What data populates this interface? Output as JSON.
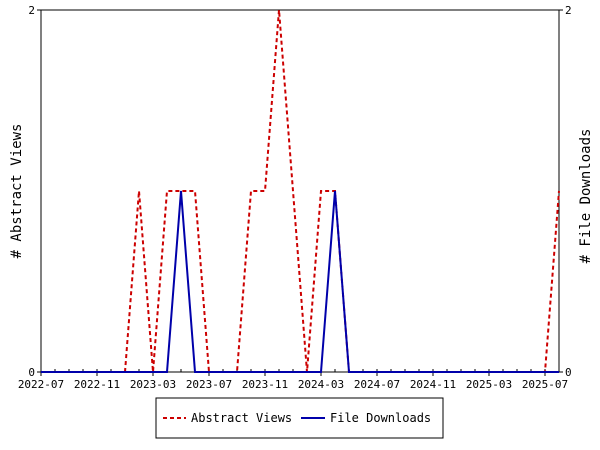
{
  "chart_data": {
    "type": "line",
    "title": "",
    "xlabel": "",
    "ylabel_left": "# Abstract Views",
    "ylabel_right": "# File Downloads",
    "ylim_left": [
      0,
      2
    ],
    "ylim_right": [
      0,
      2
    ],
    "y_ticks_left": [
      "0",
      "2"
    ],
    "y_ticks_right": [
      "0",
      "2"
    ],
    "x_range": [
      "2022-07",
      "2025-08"
    ],
    "x_tick_labels": [
      "2022-07",
      "2022-11",
      "2023-03",
      "2023-07",
      "2023-11",
      "2024-03",
      "2024-07",
      "2024-11",
      "2025-03",
      "2025-07"
    ],
    "grid": false,
    "legend_position": "bottom-center",
    "colors": {
      "abstract_views": "#cc0000",
      "file_downloads": "#0000aa"
    },
    "series": [
      {
        "name": "Abstract Views",
        "axis": "left",
        "style": "dashed",
        "x": [
          "2022-07",
          "2022-08",
          "2022-09",
          "2022-10",
          "2022-11",
          "2022-12",
          "2023-01",
          "2023-02",
          "2023-03",
          "2023-04",
          "2023-05",
          "2023-06",
          "2023-07",
          "2023-08",
          "2023-09",
          "2023-10",
          "2023-11",
          "2023-12",
          "2024-01",
          "2024-02",
          "2024-03",
          "2024-04",
          "2024-05",
          "2024-06",
          "2024-07",
          "2024-08",
          "2024-09",
          "2024-10",
          "2024-11",
          "2024-12",
          "2025-01",
          "2025-02",
          "2025-03",
          "2025-04",
          "2025-05",
          "2025-06",
          "2025-07",
          "2025-08"
        ],
        "values": [
          0,
          0,
          0,
          0,
          0,
          0,
          0,
          1,
          0,
          1,
          1,
          1,
          0,
          0,
          0,
          1,
          1,
          2,
          1,
          0,
          1,
          1,
          0,
          0,
          0,
          0,
          0,
          0,
          0,
          0,
          0,
          0,
          0,
          0,
          0,
          0,
          0,
          1
        ]
      },
      {
        "name": "File Downloads",
        "axis": "right",
        "style": "solid",
        "x": [
          "2022-07",
          "2022-08",
          "2022-09",
          "2022-10",
          "2022-11",
          "2022-12",
          "2023-01",
          "2023-02",
          "2023-03",
          "2023-04",
          "2023-05",
          "2023-06",
          "2023-07",
          "2023-08",
          "2023-09",
          "2023-10",
          "2023-11",
          "2023-12",
          "2024-01",
          "2024-02",
          "2024-03",
          "2024-04",
          "2024-05",
          "2024-06",
          "2024-07",
          "2024-08",
          "2024-09",
          "2024-10",
          "2024-11",
          "2024-12",
          "2025-01",
          "2025-02",
          "2025-03",
          "2025-04",
          "2025-05",
          "2025-06",
          "2025-07",
          "2025-08"
        ],
        "values": [
          0,
          0,
          0,
          0,
          0,
          0,
          0,
          0,
          0,
          0,
          1,
          0,
          0,
          0,
          0,
          0,
          0,
          0,
          0,
          0,
          0,
          1,
          0,
          0,
          0,
          0,
          0,
          0,
          0,
          0,
          0,
          0,
          0,
          0,
          0,
          0,
          0,
          0
        ]
      }
    ]
  }
}
